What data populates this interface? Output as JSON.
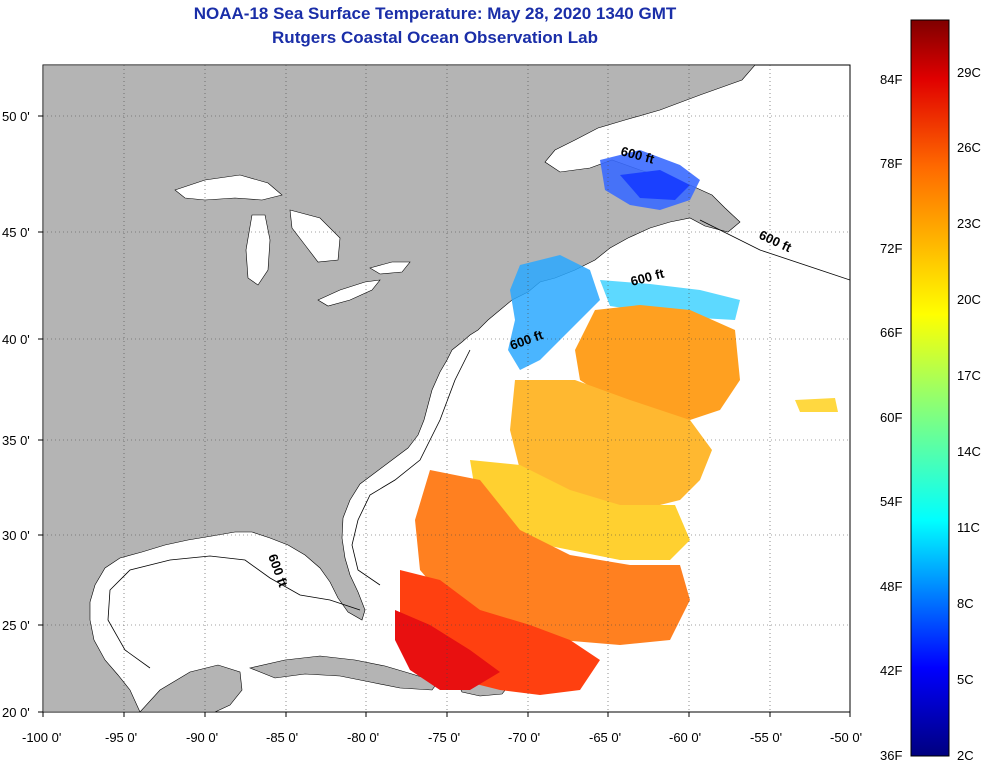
{
  "title": "NOAA-18 Sea Surface Temperature:  May 28, 2020 1340 GMT",
  "subtitle": "Rutgers Coastal Ocean Observation Lab",
  "x_ticks": [
    "-100 0'",
    "-95 0'",
    "-90 0'",
    "-85 0'",
    "-80 0'",
    "-75 0'",
    "-70 0'",
    "-65 0'",
    "-60 0'",
    "-55 0'",
    "-50 0'"
  ],
  "y_ticks": [
    "50 0'",
    "45 0'",
    "40 0'",
    "35 0'",
    "30 0'",
    "25 0'",
    "20 0'"
  ],
  "contour_labels": [
    "600 ft",
    "600 ft",
    "600 ft",
    "600 ft",
    "600 ft"
  ],
  "colorbar": {
    "fahrenheit": [
      "84F",
      "78F",
      "72F",
      "66F",
      "60F",
      "54F",
      "48F",
      "42F",
      "36F"
    ],
    "celsius": [
      "29C",
      "26C",
      "23C",
      "20C",
      "17C",
      "14C",
      "11C",
      "8C",
      "5C",
      "2C"
    ]
  },
  "colors": {
    "title": "#1a2ea8",
    "land": "#b4b4b4",
    "ocean": "#ffffff"
  }
}
